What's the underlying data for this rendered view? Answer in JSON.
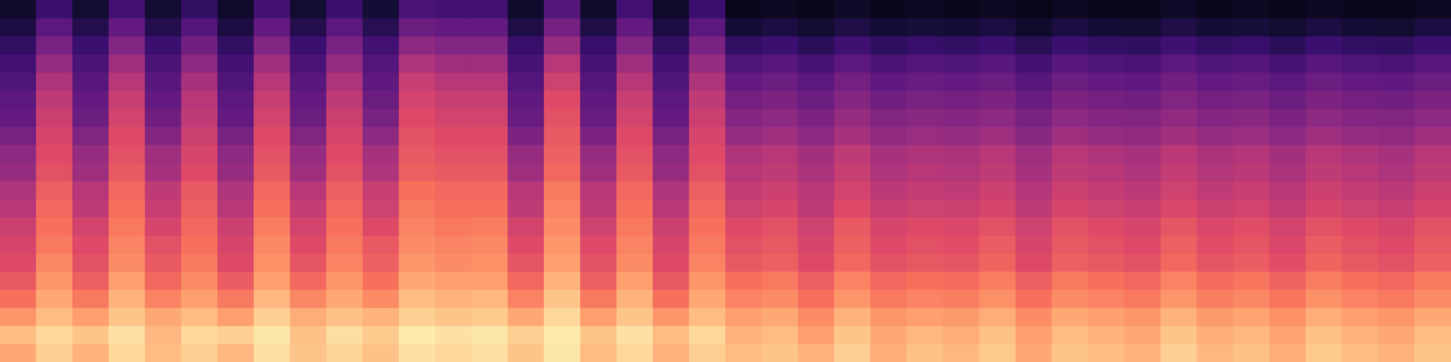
{
  "chart_data": {
    "type": "heatmap",
    "color": "magma",
    "tick_labels": false,
    "grid": false,
    "zlim": [
      0,
      100
    ],
    "z": [
      [
        82,
        90,
        84,
        92,
        86,
        90,
        85,
        93,
        88,
        91,
        87,
        94,
        92,
        93,
        88,
        95,
        86,
        92,
        84,
        90,
        86,
        88,
        84,
        90,
        83,
        87,
        85,
        89,
        82,
        88,
        86,
        84,
        90,
        85,
        87,
        83,
        89,
        86,
        84,
        88
      ],
      [
        86,
        92,
        88,
        94,
        85,
        92,
        90,
        95,
        87,
        93,
        89,
        96,
        94,
        95,
        90,
        96,
        88,
        94,
        86,
        92,
        84,
        86,
        80,
        88,
        82,
        85,
        83,
        87,
        80,
        86,
        84,
        82,
        88,
        83,
        85,
        81,
        87,
        84,
        82,
        86
      ],
      [
        78,
        86,
        80,
        88,
        82,
        86,
        80,
        90,
        83,
        87,
        84,
        90,
        88,
        89,
        82,
        92,
        80,
        88,
        78,
        86,
        80,
        82,
        76,
        84,
        78,
        80,
        79,
        83,
        76,
        82,
        80,
        78,
        84,
        79,
        81,
        77,
        83,
        80,
        78,
        82
      ],
      [
        70,
        82,
        72,
        84,
        74,
        80,
        72,
        85,
        75,
        82,
        76,
        86,
        84,
        85,
        74,
        88,
        72,
        84,
        70,
        82,
        74,
        76,
        70,
        78,
        72,
        74,
        73,
        77,
        70,
        76,
        74,
        72,
        78,
        73,
        75,
        71,
        77,
        74,
        72,
        76
      ],
      [
        64,
        78,
        66,
        80,
        68,
        76,
        65,
        80,
        68,
        78,
        70,
        82,
        80,
        80,
        68,
        84,
        66,
        80,
        64,
        78,
        70,
        72,
        66,
        74,
        68,
        70,
        69,
        73,
        66,
        72,
        70,
        68,
        74,
        69,
        71,
        67,
        73,
        70,
        68,
        72
      ],
      [
        60,
        75,
        62,
        76,
        64,
        72,
        60,
        77,
        63,
        74,
        66,
        78,
        76,
        77,
        63,
        80,
        62,
        76,
        60,
        74,
        64,
        66,
        60,
        68,
        62,
        64,
        63,
        67,
        60,
        66,
        64,
        62,
        68,
        63,
        65,
        61,
        67,
        64,
        62,
        66
      ],
      [
        58,
        72,
        60,
        74,
        62,
        70,
        58,
        75,
        60,
        72,
        64,
        76,
        74,
        75,
        60,
        78,
        60,
        74,
        58,
        72,
        62,
        64,
        58,
        66,
        60,
        62,
        61,
        65,
        58,
        64,
        62,
        60,
        66,
        61,
        63,
        59,
        65,
        62,
        60,
        64
      ],
      [
        55,
        70,
        57,
        72,
        58,
        68,
        55,
        73,
        57,
        70,
        60,
        74,
        72,
        73,
        57,
        76,
        56,
        72,
        55,
        70,
        60,
        62,
        56,
        64,
        58,
        60,
        59,
        62,
        56,
        62,
        60,
        58,
        63,
        59,
        61,
        57,
        62,
        60,
        58,
        62
      ],
      [
        50,
        68,
        52,
        70,
        54,
        66,
        50,
        70,
        53,
        68,
        56,
        72,
        70,
        70,
        52,
        74,
        52,
        70,
        50,
        68,
        56,
        58,
        52,
        60,
        54,
        56,
        55,
        58,
        52,
        58,
        56,
        54,
        59,
        55,
        57,
        53,
        58,
        56,
        54,
        58
      ],
      [
        48,
        66,
        50,
        68,
        52,
        64,
        48,
        68,
        50,
        66,
        54,
        70,
        68,
        68,
        50,
        72,
        50,
        68,
        48,
        66,
        53,
        55,
        50,
        57,
        51,
        53,
        52,
        55,
        49,
        55,
        53,
        51,
        56,
        52,
        54,
        50,
        55,
        53,
        51,
        55
      ],
      [
        42,
        62,
        44,
        64,
        46,
        60,
        42,
        64,
        44,
        62,
        48,
        66,
        64,
        64,
        44,
        68,
        44,
        64,
        42,
        62,
        50,
        52,
        47,
        54,
        48,
        50,
        49,
        52,
        46,
        52,
        50,
        48,
        53,
        49,
        51,
        47,
        52,
        50,
        48,
        52
      ],
      [
        40,
        60,
        42,
        62,
        44,
        58,
        40,
        62,
        42,
        60,
        46,
        64,
        62,
        62,
        42,
        66,
        42,
        62,
        40,
        60,
        48,
        50,
        45,
        52,
        46,
        48,
        47,
        50,
        44,
        50,
        48,
        46,
        51,
        47,
        49,
        45,
        50,
        48,
        46,
        50
      ],
      [
        35,
        58,
        37,
        60,
        38,
        55,
        35,
        60,
        37,
        58,
        40,
        62,
        60,
        60,
        36,
        64,
        36,
        60,
        35,
        58,
        42,
        44,
        40,
        46,
        41,
        43,
        42,
        44,
        39,
        44,
        42,
        41,
        45,
        42,
        43,
        40,
        44,
        42,
        41,
        44
      ],
      [
        30,
        55,
        32,
        57,
        33,
        52,
        30,
        57,
        32,
        55,
        35,
        60,
        57,
        57,
        31,
        62,
        31,
        57,
        30,
        55,
        38,
        40,
        36,
        42,
        37,
        39,
        38,
        40,
        35,
        40,
        38,
        37,
        41,
        38,
        39,
        36,
        40,
        38,
        37,
        40
      ],
      [
        28,
        52,
        30,
        54,
        30,
        50,
        28,
        54,
        30,
        52,
        32,
        57,
        54,
        54,
        29,
        60,
        29,
        54,
        28,
        52,
        34,
        36,
        32,
        38,
        33,
        35,
        34,
        36,
        31,
        36,
        34,
        33,
        37,
        34,
        35,
        32,
        36,
        34,
        33,
        36
      ],
      [
        25,
        48,
        27,
        50,
        27,
        46,
        25,
        50,
        27,
        48,
        29,
        54,
        50,
        50,
        26,
        56,
        26,
        50,
        25,
        48,
        30,
        32,
        28,
        34,
        29,
        31,
        30,
        32,
        27,
        32,
        30,
        29,
        33,
        30,
        31,
        28,
        32,
        30,
        29,
        32
      ],
      [
        22,
        42,
        24,
        44,
        24,
        40,
        22,
        44,
        24,
        42,
        26,
        48,
        44,
        44,
        23,
        50,
        23,
        44,
        22,
        42,
        25,
        27,
        23,
        28,
        24,
        26,
        25,
        27,
        22,
        27,
        25,
        24,
        28,
        25,
        26,
        23,
        27,
        25,
        24,
        27
      ],
      [
        18,
        35,
        20,
        37,
        20,
        33,
        18,
        37,
        20,
        35,
        22,
        40,
        37,
        37,
        19,
        42,
        19,
        37,
        18,
        35,
        18,
        20,
        16,
        21,
        17,
        19,
        18,
        20,
        15,
        20,
        18,
        17,
        21,
        18,
        19,
        16,
        20,
        18,
        17,
        20
      ],
      [
        12,
        28,
        14,
        30,
        14,
        26,
        12,
        30,
        14,
        28,
        15,
        32,
        30,
        30,
        13,
        34,
        13,
        30,
        12,
        28,
        10,
        12,
        9,
        13,
        10,
        11,
        10,
        12,
        8,
        12,
        10,
        9,
        13,
        10,
        11,
        9,
        12,
        10,
        9,
        12
      ],
      [
        8,
        20,
        9,
        22,
        9,
        18,
        8,
        22,
        9,
        20,
        10,
        24,
        22,
        22,
        8,
        26,
        8,
        22,
        8,
        20,
        5,
        6,
        4,
        7,
        5,
        6,
        5,
        6,
        4,
        6,
        5,
        5,
        7,
        5,
        6,
        4,
        6,
        5,
        5,
        6
      ]
    ]
  }
}
